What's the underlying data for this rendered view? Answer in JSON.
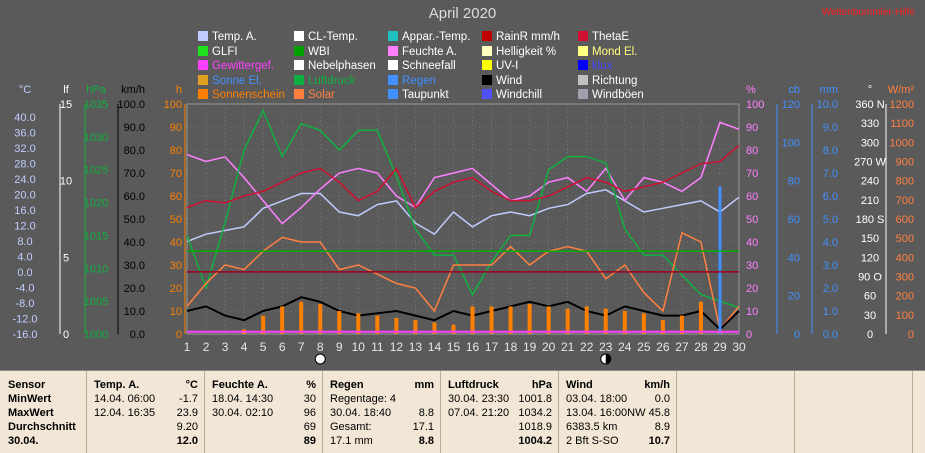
{
  "chart_data": {
    "type": "line",
    "title": "April 2020",
    "x": [
      1,
      2,
      3,
      4,
      5,
      6,
      7,
      8,
      9,
      10,
      11,
      12,
      13,
      14,
      15,
      16,
      17,
      18,
      19,
      20,
      21,
      22,
      23,
      24,
      25,
      26,
      27,
      28,
      29,
      30
    ],
    "x_ticks": [
      "1",
      "2",
      "3",
      "4",
      "5",
      "6",
      "7",
      "8",
      "9",
      "10",
      "11",
      "12",
      "13",
      "14",
      "15",
      "16",
      "17",
      "18",
      "19",
      "20",
      "21",
      "22",
      "23",
      "24",
      "25",
      "26",
      "27",
      "28",
      "29",
      "30"
    ],
    "ylim_percent": [
      0,
      100
    ],
    "grid": true,
    "series": [
      {
        "name": "Temp. A.",
        "color": "#c0ccff",
        "values": [
          9,
          11,
          12,
          13,
          18,
          20,
          22,
          22,
          17,
          16,
          19,
          20,
          14,
          11,
          17,
          13,
          16,
          17,
          16,
          18,
          19,
          22,
          23,
          20,
          17,
          18,
          19,
          20,
          17,
          21
        ]
      },
      {
        "name": "Feuchte A.",
        "color": "#ff80ff",
        "values": [
          78,
          75,
          77,
          68,
          58,
          48,
          55,
          63,
          70,
          72,
          70,
          60,
          55,
          68,
          70,
          72,
          65,
          58,
          60,
          66,
          68,
          62,
          72,
          58,
          68,
          66,
          62,
          68,
          92,
          89
        ]
      },
      {
        "name": "Luftdruck",
        "color": "#10b040",
        "values": [
          1015,
          1007,
          1017,
          1028,
          1034,
          1027,
          1032,
          1031,
          1028,
          1031,
          1031,
          1024,
          1016,
          1012,
          1012,
          1006,
          1011,
          1015,
          1015,
          1025,
          1027,
          1027,
          1026,
          1016,
          1012,
          1012,
          1009,
          1006,
          1005,
          1004
        ]
      },
      {
        "name": "ThetaE",
        "color": "#d01030",
        "values": [
          55,
          58,
          57,
          60,
          62,
          66,
          70,
          72,
          66,
          58,
          62,
          72,
          55,
          62,
          66,
          68,
          62,
          58,
          58,
          60,
          64,
          68,
          66,
          62,
          64,
          66,
          70,
          74,
          75,
          82
        ]
      },
      {
        "name": "Solar",
        "color": "#ff8040",
        "values": [
          12,
          22,
          30,
          28,
          36,
          42,
          40,
          40,
          28,
          30,
          26,
          22,
          20,
          10,
          30,
          30,
          30,
          38,
          30,
          36,
          38,
          36,
          24,
          30,
          18,
          10,
          44,
          40,
          2,
          12
        ]
      },
      {
        "name": "Wind",
        "color": "#000000",
        "values": [
          10,
          12,
          8,
          6,
          10,
          12,
          16,
          14,
          10,
          8,
          9,
          10,
          8,
          6,
          10,
          8,
          10,
          12,
          14,
          12,
          14,
          10,
          8,
          12,
          10,
          8,
          8,
          10,
          2,
          10
        ]
      },
      {
        "name": "Sonnenschein",
        "color": "#ff8000",
        "values": [
          0,
          0,
          0,
          2,
          8,
          12,
          14,
          13,
          10,
          9,
          8,
          7,
          6,
          5,
          4,
          12,
          12,
          12,
          13,
          12,
          11,
          12,
          11,
          10,
          9,
          6,
          8,
          14,
          2,
          0
        ]
      },
      {
        "name": "Regen",
        "color": "#4090ff",
        "values": [
          0,
          0,
          0,
          0,
          0,
          0,
          0,
          0,
          0,
          0,
          0,
          0,
          0,
          0,
          0,
          0,
          0,
          0,
          0,
          0,
          0,
          0,
          0,
          0,
          0,
          0,
          0,
          0,
          64,
          0
        ]
      }
    ]
  },
  "legend": [
    {
      "label": "Temp. A.",
      "color": "#c0ccff"
    },
    {
      "label": "CL-Temp.",
      "color": "#ffffff"
    },
    {
      "label": "Appar.-Temp.",
      "color": "#20c0c0"
    },
    {
      "label": "RainR mm/h",
      "color": "#c00000"
    },
    {
      "label": "ThetaE",
      "color": "#d01030"
    },
    {
      "label": "GLFI",
      "color": "#20e020"
    },
    {
      "label": "WBI",
      "color": "#00a000"
    },
    {
      "label": "Feuchte A.",
      "color": "#ff80ff"
    },
    {
      "label": "Helligkeit %",
      "color": "#ffffc0"
    },
    {
      "label": "Mond El.",
      "color": "#ffff80"
    },
    {
      "label": "Gewittergef.",
      "color": "#ff40ff"
    },
    {
      "label": "Nebelphasen",
      "color": "#ffffff"
    },
    {
      "label": "Schneefall",
      "color": "#ffffff"
    },
    {
      "label": "UV-I",
      "color": "#ffff00"
    },
    {
      "label": "klux",
      "color": "#0000ff"
    },
    {
      "label": "Sonne El.",
      "color": "#e0a020"
    },
    {
      "label": "Luftdruck",
      "color": "#10b040"
    },
    {
      "label": "Regen",
      "color": "#4090ff"
    },
    {
      "label": "Wind",
      "color": "#000000"
    },
    {
      "label": "Richtung",
      "color": "#c0c0c0"
    },
    {
      "label": "Sonnenschein",
      "color": "#ff8000"
    },
    {
      "label": "Solar",
      "color": "#ff8040"
    },
    {
      "label": "Taupunkt",
      "color": "#4090ff"
    },
    {
      "label": "Windchill",
      "color": "#5050ff"
    },
    {
      "label": "Windböen",
      "color": "#a0a0b0"
    }
  ],
  "legend_text_colors": {
    "Sonne El.": "#4090ff",
    "Luftdruck": "#10b040",
    "Regen": "#4090ff",
    "klux": "#4040ff",
    "Sonnenschein": "#ff8000",
    "Solar": "#ff8040",
    "Mond El.": "#ffff80",
    "Gewittergef.": "#ff40ff",
    "Nebelphasen": "#ffffff"
  },
  "corner_label": "Weltenbummler-Hilfe",
  "axes": [
    {
      "name": "°C",
      "color": "#c0ccff",
      "ticks": [
        "40.0",
        "36.0",
        "32.0",
        "28.0",
        "24.0",
        "20.0",
        "16.0",
        "12.0",
        "8.0",
        "4.0",
        "0.0",
        "-4.0",
        "-8.0",
        "-12.0",
        "-16.0"
      ]
    },
    {
      "name": "lf",
      "color": "#ffffff",
      "ticks": [
        "15",
        "10",
        "5",
        "0"
      ]
    },
    {
      "name": "hPa",
      "color": "#10b040",
      "ticks": [
        "1035",
        "1030",
        "1025",
        "1020",
        "1015",
        "1010",
        "1005",
        "1000"
      ]
    },
    {
      "name": "km/h",
      "color": "#000000",
      "ticks": [
        "100.0",
        "90.0",
        "80.0",
        "70.0",
        "60.0",
        "50.0",
        "40.0",
        "30.0",
        "20.0",
        "10.0",
        "0.0"
      ]
    },
    {
      "name": "h",
      "color": "#ff8000",
      "ticks": [
        "100",
        "90",
        "80",
        "70",
        "60",
        "50",
        "40",
        "30",
        "20",
        "10",
        "0"
      ]
    },
    {
      "name": "%",
      "color": "#ff80ff",
      "ticks": [
        "100",
        "90",
        "80",
        "70",
        "60",
        "50",
        "40",
        "30",
        "20",
        "10",
        "0"
      ]
    },
    {
      "name": "cb",
      "color": "#4090ff",
      "ticks": [
        "120",
        "100",
        "80",
        "60",
        "40",
        "20",
        "0"
      ]
    },
    {
      "name": "mm",
      "color": "#4090ff",
      "ticks": [
        "10.0",
        "9.0",
        "8.0",
        "7.0",
        "6.0",
        "5.0",
        "4.0",
        "3.0",
        "2.0",
        "1.0",
        "0.0"
      ]
    },
    {
      "name": "°",
      "color": "#ffffff",
      "ticks": [
        "360 N",
        "330",
        "300",
        "270 W",
        "240",
        "210",
        "180 S",
        "150",
        "120",
        "90 O",
        "60",
        "30",
        "0"
      ]
    },
    {
      "name": "W/m²",
      "color": "#ff8040",
      "ticks": [
        "1200",
        "1100",
        "1000",
        "900",
        "800",
        "700",
        "600",
        "500",
        "400",
        "300",
        "200",
        "100",
        "0"
      ]
    }
  ],
  "moon_markers": [
    {
      "day": 8,
      "phase": "full-moon"
    },
    {
      "day": 23,
      "phase": "new-moon"
    }
  ],
  "stats": {
    "row_labels": [
      "Sensor",
      "MinWert",
      "MaxWert",
      "Durchschnitt",
      "30.04."
    ],
    "temp": {
      "header": "Temp. A.",
      "unit": "°C",
      "min_date": "14.04.  06:00",
      "min_val": "-1.7",
      "max_date": "12.04.  16:35",
      "max_val": "23.9",
      "avg": "9.20",
      "today": "12.0"
    },
    "feuchte": {
      "header": "Feuchte A.",
      "unit": "%",
      "min_date": "18.04.  14:30",
      "min_val": "30",
      "max_date": "30.04.  02:10",
      "max_val": "96",
      "avg": "69",
      "today": "89"
    },
    "regen": {
      "header": "Regen",
      "unit": "mm",
      "min_text": "Regentage: 4",
      "max_date": "30.04.  18:40",
      "max_val": "8.8",
      "avg_label": "Gesamt:",
      "avg": "17.1",
      "today_label": "17.1 mm",
      "today": "8.8"
    },
    "druck": {
      "header": "Luftdruck",
      "unit": "hPa",
      "min_date": "30.04.  23:30",
      "min_val": "1001.8",
      "max_date": "07.04.  21:20",
      "max_val": "1034.2",
      "avg": "1018.9",
      "today": "1004.2"
    },
    "wind": {
      "header": "Wind",
      "unit": "km/h",
      "min_date": "03.04.  18:00",
      "min_val": "0.0",
      "max_date": "13.04.  16:00NW",
      "max_val": "45.8",
      "avg_label": "6383.5 km",
      "avg": "8.9",
      "today_label": "2 Bft S-SO",
      "today": "10.7"
    }
  }
}
